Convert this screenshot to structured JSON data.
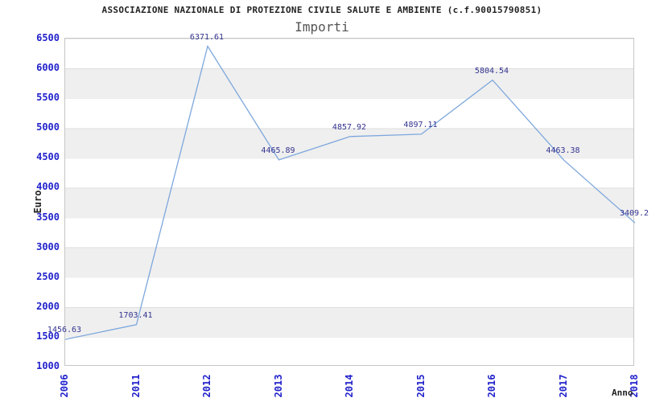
{
  "header": {
    "title": "ASSOCIAZIONE NAZIONALE DI PROTEZIONE CIVILE SALUTE E AMBIENTE (c.f.90015790851)",
    "subtitle": "Importi"
  },
  "axes": {
    "y_label": "Euro",
    "x_label": "Anno",
    "y_ticks": [
      "6500",
      "6000",
      "5500",
      "5000",
      "4500",
      "4000",
      "3500",
      "3000",
      "2500",
      "2000",
      "1500",
      "1000"
    ]
  },
  "chart_data": {
    "type": "line",
    "title": "Importi",
    "categories": [
      "2006",
      "2011",
      "2012",
      "2013",
      "2014",
      "2015",
      "2016",
      "2017",
      "2018"
    ],
    "values": [
      1456.63,
      1703.41,
      6371.61,
      4465.89,
      4857.92,
      4897.11,
      5804.54,
      4463.38,
      3409.2
    ],
    "point_labels": [
      "1456.63",
      "1703.41",
      "6371.61",
      "4465.89",
      "4857.92",
      "4897.11",
      "5804.54",
      "4463.38",
      "3409.2"
    ],
    "xlabel": "Anno",
    "ylabel": "Euro",
    "ylim": [
      1000,
      6500
    ],
    "y_step": 500,
    "grid": "horizontal-bands-alternating",
    "legend": "none"
  },
  "colors": {
    "line": "#7da7dd",
    "axis_text": "#2222cc",
    "point_label": "#333390",
    "title": "#222222",
    "subtitle": "#555555",
    "band": "#efefef",
    "plot_border": "#c6c6c6"
  }
}
